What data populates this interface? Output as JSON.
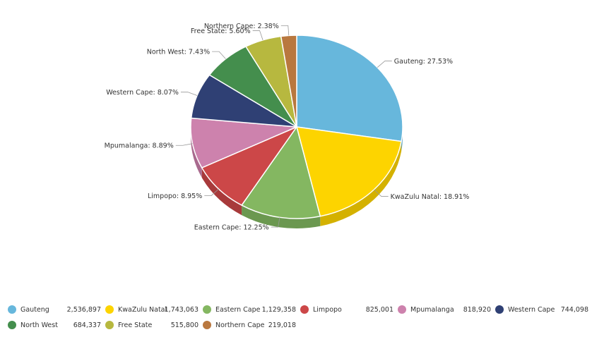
{
  "chart_data": {
    "type": "pie",
    "style": "3d",
    "slices": [
      {
        "name": "Gauteng",
        "value": 2536897,
        "percent": "27.53%",
        "label": "Gauteng: 27.53%",
        "color": "#67b7dc",
        "side": "#5aa1c2"
      },
      {
        "name": "KwaZulu Natal",
        "value": 1743063,
        "percent": "18.91%",
        "label": "KwaZulu Natal: 18.91%",
        "color": "#fdd400",
        "side": "#d4b100"
      },
      {
        "name": "Eastern Cape",
        "value": 1129358,
        "percent": "12.25%",
        "label": "Eastern Cape: 12.25%",
        "color": "#84b761",
        "side": "#6b9850"
      },
      {
        "name": "Limpopo",
        "value": 825001,
        "percent": "8.95%",
        "label": "Limpopo: 8.95%",
        "color": "#cc4748",
        "side": "#a83a3b"
      },
      {
        "name": "Mpumalanga",
        "value": 818920,
        "percent": "8.89%",
        "label": "Mpumalanga: 8.89%",
        "color": "#cd82ad",
        "side": "#a96a8e"
      },
      {
        "name": "Western Cape",
        "value": 744098,
        "percent": "8.07%",
        "label": "Western Cape: 8.07%",
        "color": "#2f4074",
        "side": "#26345e"
      },
      {
        "name": "North West",
        "value": 684337,
        "percent": "7.43%",
        "label": "North West: 7.43%",
        "color": "#448e4d",
        "side": "#37743f"
      },
      {
        "name": "Free State",
        "value": 515800,
        "percent": "5.60%",
        "label": "Free State: 5.60%",
        "color": "#b7b83f",
        "side": "#979834"
      },
      {
        "name": "Northern Cape",
        "value": 219018,
        "percent": "2.38%",
        "label": "Northern Cape: 2.38%",
        "color": "#b9783f",
        "side": "#986334"
      }
    ]
  },
  "legend": {
    "rows": [
      [
        {
          "name": "Gauteng",
          "value": "2,536,897",
          "color": "#67b7dc"
        },
        {
          "name": "KwaZulu Natal",
          "value": "1,743,063",
          "color": "#fdd400"
        },
        {
          "name": "Eastern Cape",
          "value": "1,129,358",
          "color": "#84b761"
        },
        {
          "name": "Limpopo",
          "value": "825,001",
          "color": "#cc4748"
        },
        {
          "name": "Mpumalanga",
          "value": "818,920",
          "color": "#cd82ad"
        },
        {
          "name": "Western Cape",
          "value": "744,098",
          "color": "#2f4074"
        }
      ],
      [
        {
          "name": "North West",
          "value": "684,337",
          "color": "#448e4d"
        },
        {
          "name": "Free State",
          "value": "515,800",
          "color": "#b7b83f"
        },
        {
          "name": "Northern Cape",
          "value": "219,018",
          "color": "#b9783f"
        }
      ]
    ]
  }
}
